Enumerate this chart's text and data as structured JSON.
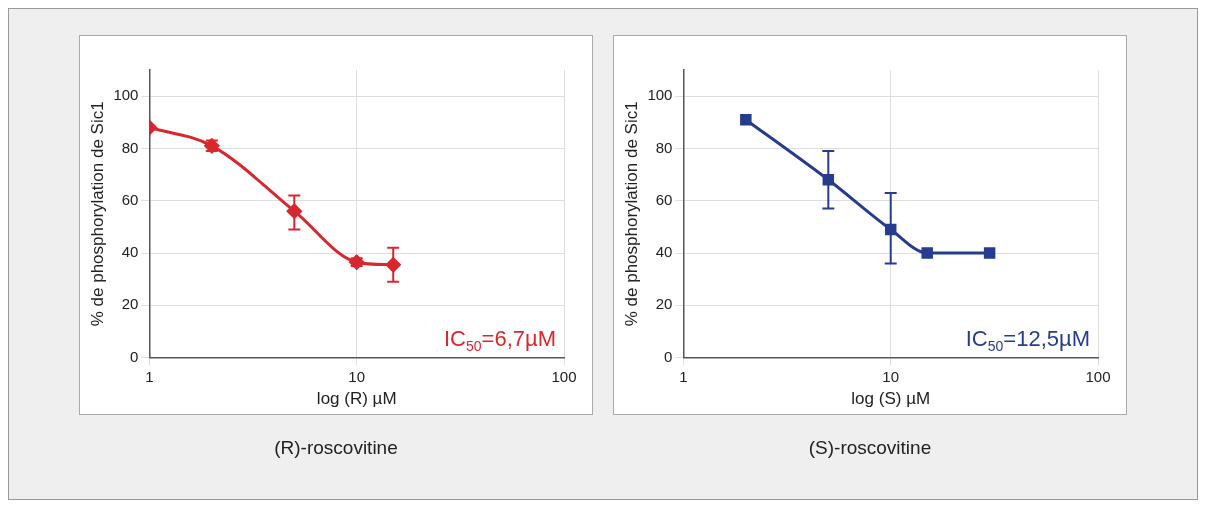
{
  "chart_data": [
    {
      "type": "line",
      "title": "(R)-roscovitine",
      "xlabel": "log (R) µM",
      "ylabel": "% de phosphorylation de Sic1",
      "x": [
        1,
        2,
        5,
        10,
        15
      ],
      "xlim": [
        1,
        100
      ],
      "xticks": [
        1,
        10,
        100
      ],
      "ylim": [
        0,
        110
      ],
      "yticks": [
        0,
        20,
        40,
        60,
        80,
        100
      ],
      "log": "x",
      "grid": true,
      "marker": "diamond",
      "annotations": [
        "IC$_{50}$=6,7µM"
      ],
      "series": [
        {
          "color": "#d9272e",
          "values": [
            88,
            81,
            56,
            36.5,
            35.5
          ],
          "errors": [
            null,
            2,
            [
              49,
              62
            ],
            1.5,
            [
              29,
              42
            ]
          ]
        }
      ]
    },
    {
      "type": "line",
      "title": "(S)-roscovitine",
      "xlabel": "log (S) µM",
      "ylabel": "% de phosphorylation de Sic1",
      "x": [
        2,
        5,
        10,
        15,
        30
      ],
      "xlim": [
        1,
        100
      ],
      "xticks": [
        1,
        10,
        100
      ],
      "ylim": [
        0,
        110
      ],
      "yticks": [
        0,
        20,
        40,
        60,
        80,
        100
      ],
      "log": "x",
      "grid": true,
      "marker": "square",
      "annotations": [
        "IC$_{50}$=12,5µM"
      ],
      "series": [
        {
          "color": "#263d8f",
          "values": [
            91,
            68,
            49,
            40,
            40
          ],
          "errors": [
            null,
            [
              57,
              79
            ],
            [
              36,
              63
            ],
            null,
            null
          ]
        }
      ]
    }
  ]
}
